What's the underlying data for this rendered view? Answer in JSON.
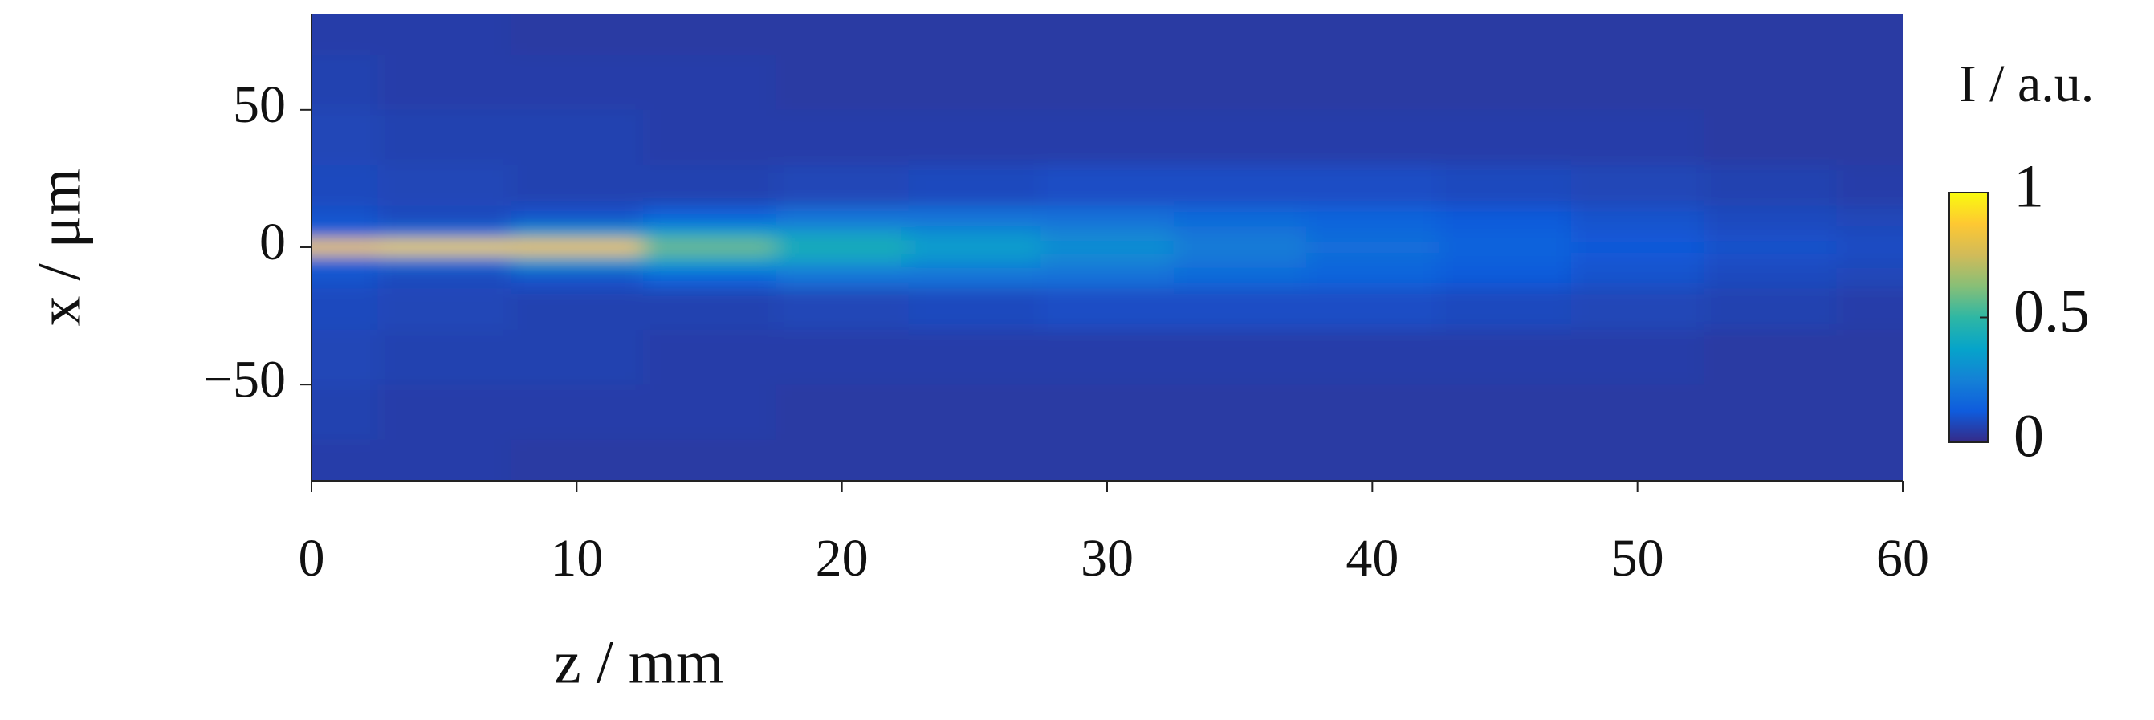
{
  "chart_data": {
    "type": "heatmap",
    "x_label": "z / mm",
    "y_label": "x / μm",
    "colorbar_label": "I / a.u.",
    "x": [
      0,
      5,
      10,
      15,
      20,
      25,
      30,
      35,
      40,
      45,
      50,
      55,
      60
    ],
    "y": [
      80,
      60,
      40,
      20,
      10,
      5,
      0,
      -5,
      -10,
      -20,
      -40,
      -60,
      -80
    ],
    "values": [
      [
        0.05,
        0.05,
        0.04,
        0.04,
        0.04,
        0.04,
        0.04,
        0.04,
        0.04,
        0.04,
        0.04,
        0.04,
        0.04
      ],
      [
        0.06,
        0.05,
        0.05,
        0.05,
        0.04,
        0.04,
        0.04,
        0.04,
        0.04,
        0.04,
        0.04,
        0.04,
        0.04
      ],
      [
        0.07,
        0.06,
        0.06,
        0.05,
        0.05,
        0.05,
        0.05,
        0.05,
        0.05,
        0.05,
        0.05,
        0.04,
        0.04
      ],
      [
        0.08,
        0.07,
        0.06,
        0.06,
        0.07,
        0.08,
        0.09,
        0.09,
        0.09,
        0.08,
        0.07,
        0.06,
        0.05
      ],
      [
        0.1,
        0.08,
        0.1,
        0.15,
        0.2,
        0.2,
        0.19,
        0.17,
        0.15,
        0.12,
        0.1,
        0.08,
        0.07
      ],
      [
        0.15,
        0.2,
        0.35,
        0.38,
        0.35,
        0.3,
        0.26,
        0.21,
        0.17,
        0.14,
        0.11,
        0.09,
        0.08
      ],
      [
        0.9,
        0.92,
        0.88,
        0.6,
        0.45,
        0.36,
        0.3,
        0.24,
        0.19,
        0.15,
        0.12,
        0.1,
        0.09
      ],
      [
        0.15,
        0.2,
        0.35,
        0.38,
        0.35,
        0.3,
        0.26,
        0.21,
        0.17,
        0.14,
        0.11,
        0.09,
        0.08
      ],
      [
        0.1,
        0.08,
        0.1,
        0.15,
        0.2,
        0.2,
        0.19,
        0.17,
        0.15,
        0.12,
        0.1,
        0.08,
        0.07
      ],
      [
        0.08,
        0.07,
        0.06,
        0.06,
        0.07,
        0.08,
        0.09,
        0.09,
        0.09,
        0.08,
        0.07,
        0.06,
        0.05
      ],
      [
        0.07,
        0.06,
        0.06,
        0.05,
        0.05,
        0.05,
        0.05,
        0.05,
        0.05,
        0.05,
        0.05,
        0.04,
        0.04
      ],
      [
        0.06,
        0.05,
        0.05,
        0.05,
        0.04,
        0.04,
        0.04,
        0.04,
        0.04,
        0.04,
        0.04,
        0.04,
        0.04
      ],
      [
        0.05,
        0.05,
        0.04,
        0.04,
        0.04,
        0.04,
        0.04,
        0.04,
        0.04,
        0.04,
        0.04,
        0.04,
        0.04
      ]
    ],
    "xlim": [
      0,
      60
    ],
    "xticks": [
      0,
      10,
      20,
      30,
      40,
      50,
      60
    ],
    "ylim": [
      -85,
      85
    ],
    "yticks": [
      {
        "value": -50,
        "label": "−50"
      },
      0,
      50
    ],
    "clim": [
      0,
      1
    ],
    "cticks": [
      0,
      0.5,
      1
    ],
    "colormap": [
      "#352a87",
      "#0f5cdd",
      "#1481d6",
      "#06a4ca",
      "#2eb7a4",
      "#87bf77",
      "#d1bb59",
      "#fec832",
      "#f9fb0e"
    ]
  }
}
